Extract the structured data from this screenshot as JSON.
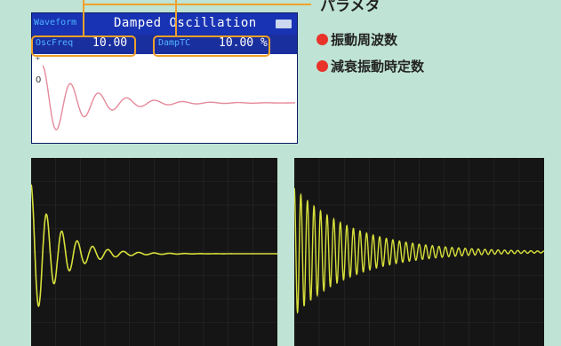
{
  "lcd": {
    "waveform_label": "Waveform",
    "title": "Damped Oscillation",
    "params": [
      {
        "name": "OscFreq",
        "value": "10.00"
      },
      {
        "name": "DampTC",
        "value": "10.00 %"
      }
    ],
    "plot_marker_top": "+",
    "plot_marker_zero": "0"
  },
  "callout": {
    "title": "パラメタ",
    "items": [
      "振動周波数",
      "減衰振動時定数"
    ]
  },
  "colors": {
    "lcd_bg": "#1a2f9e",
    "highlight": "#f0a22a",
    "bullet": "#e8322a",
    "waveform_pink": "#e58a9a",
    "scope_trace": "#d6df3a"
  }
}
